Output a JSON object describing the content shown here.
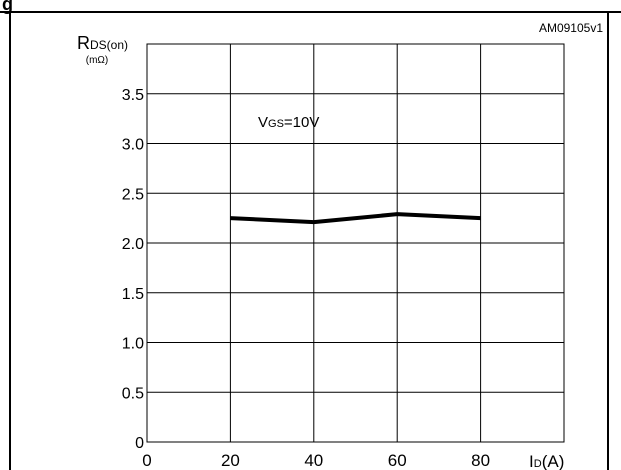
{
  "figure": {
    "heading_fragment": "g",
    "code": "AM09105v1"
  },
  "chart_data": {
    "type": "line",
    "title": "",
    "annotation": {
      "main": "V",
      "subscript": "GS",
      "suffix": "=10V"
    },
    "ylabel": {
      "main": "R",
      "subscript": "DS(on)",
      "unit": "(mΩ)"
    },
    "xlabel": {
      "main": "I",
      "subscript": "D",
      "unit": "(A)"
    },
    "xlim": [
      0,
      100
    ],
    "ylim": [
      0,
      4.0
    ],
    "xticks": [
      0,
      20,
      40,
      60,
      80
    ],
    "xtick_labels": [
      "0",
      "20",
      "40",
      "60",
      "80"
    ],
    "yticks": [
      0,
      0.5,
      1.0,
      1.5,
      2.0,
      2.5,
      3.0,
      3.5
    ],
    "ytick_labels": [
      "0",
      "0.5",
      "1.0",
      "1.5",
      "2.0",
      "2.5",
      "3.0",
      "3.5"
    ],
    "grid": true,
    "series": [
      {
        "x": [
          20,
          40,
          60,
          80
        ],
        "y": [
          2.25,
          2.21,
          2.29,
          2.25
        ],
        "color": "#000000"
      }
    ]
  }
}
